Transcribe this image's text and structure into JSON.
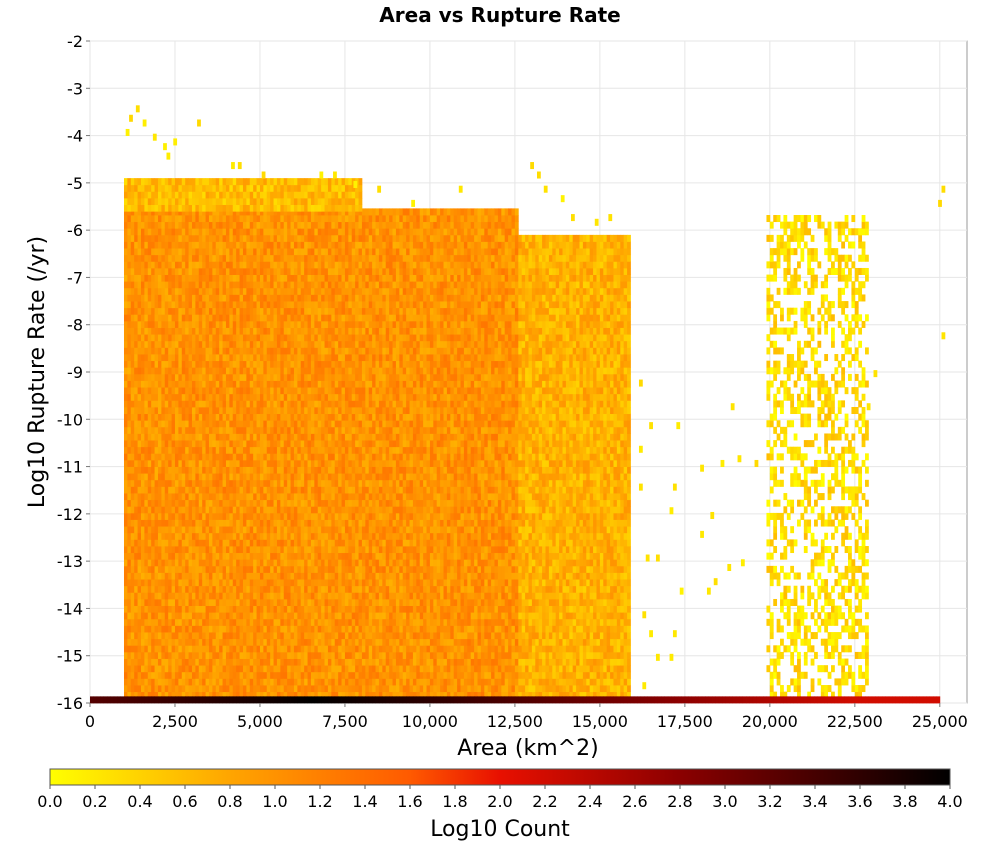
{
  "chart_data": {
    "type": "heatmap",
    "title": "Area vs Rupture Rate",
    "xlabel": "Area (km^2)",
    "ylabel": "Log10 Rupture Rate (/yr)",
    "xlim": [
      0,
      25800
    ],
    "ylim": [
      -16,
      -2
    ],
    "x_ticks": [
      "0",
      "2,500",
      "5,000",
      "7,500",
      "10,000",
      "12,500",
      "15,000",
      "17,500",
      "20,000",
      "22,500",
      "25,000"
    ],
    "x_tick_values": [
      0,
      2500,
      5000,
      7500,
      10000,
      12500,
      15000,
      17500,
      20000,
      22500,
      25000
    ],
    "y_ticks": [
      "-2",
      "-3",
      "-4",
      "-5",
      "-6",
      "-7",
      "-8",
      "-9",
      "-10",
      "-11",
      "-12",
      "-13",
      "-14",
      "-15",
      "-16"
    ],
    "y_tick_values": [
      -2,
      -3,
      -4,
      -5,
      -6,
      -7,
      -8,
      -9,
      -10,
      -11,
      -12,
      -13,
      -14,
      -15,
      -16
    ],
    "grid": true,
    "colorbar": {
      "label": "Log10 Count",
      "min": 0.0,
      "max": 4.0,
      "ticks": [
        "0.0",
        "0.2",
        "0.4",
        "0.6",
        "0.8",
        "1.0",
        "1.2",
        "1.4",
        "1.6",
        "1.8",
        "2.0",
        "2.2",
        "2.4",
        "2.6",
        "2.8",
        "3.0",
        "3.2",
        "3.4",
        "3.6",
        "3.8",
        "4.0"
      ],
      "colors": [
        "#ffff00",
        "#ffa500",
        "#ff4500",
        "#e00000",
        "#8b0000",
        "#000000"
      ]
    },
    "regions": [
      {
        "name": "main block",
        "x": [
          1000,
          12600
        ],
        "y": [
          -15.9,
          -5.6
        ],
        "log10_count": [
          0.7,
          1.3
        ]
      },
      {
        "name": "main top shelf",
        "x": [
          1000,
          8000
        ],
        "y": [
          -5.6,
          -5.0
        ],
        "log10_count": [
          0.3,
          0.9
        ]
      },
      {
        "name": "middle block",
        "x": [
          12600,
          15900
        ],
        "y": [
          -15.9,
          -6.2
        ],
        "log10_count": [
          0.4,
          1.0
        ]
      },
      {
        "name": "right cluster",
        "x": [
          19900,
          22900
        ],
        "y": [
          -15.9,
          -5.8
        ],
        "log10_count": [
          0.0,
          0.6
        ]
      },
      {
        "name": "bottom row",
        "x": [
          0,
          25000
        ],
        "y": [
          -16.0,
          -15.9
        ],
        "log10_count": [
          2.2,
          4.0
        ]
      }
    ]
  }
}
